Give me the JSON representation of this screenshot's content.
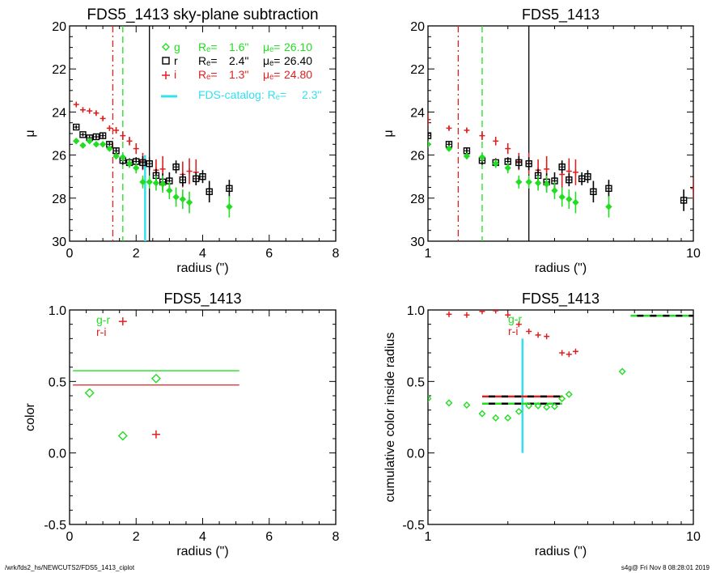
{
  "colors": {
    "g": "#22dd22",
    "r": "#000000",
    "i": "#e02020",
    "catalog": "#33e0ee"
  },
  "footer": {
    "left": "/wrk/fds2_hs/NEWCUTS2/FDS5_1413_ciplot",
    "right": "s4g@  Fri Nov  8 08:28:01 2019"
  },
  "chart_data": [
    {
      "type": "scatter",
      "id": "p1",
      "title": "FDS5_1413 sky-plane subtraction",
      "xlabel": "radius (\")",
      "ylabel": "μ",
      "xscale": "linear",
      "xlim": [
        0,
        8
      ],
      "ylim": [
        30,
        20
      ],
      "xticks": [
        0,
        2,
        4,
        6,
        8
      ],
      "yticks": [
        20,
        22,
        24,
        26,
        28,
        30
      ],
      "legend": {
        "placement": "top-right",
        "entries": [
          {
            "band": "g",
            "symbol": "diamond",
            "label": "g",
            "re_label": "Rₑ=",
            "re": "1.6\"",
            "mu_label": "μₑ=",
            "mu": "26.10"
          },
          {
            "band": "r",
            "symbol": "square",
            "label": "r",
            "re_label": "Rₑ=",
            "re": "2.4\"",
            "mu_label": "μₑ=",
            "mu": "26.40"
          },
          {
            "band": "i",
            "symbol": "plus",
            "label": "i",
            "re_label": "Rₑ=",
            "re": "1.3\"",
            "mu_label": "μₑ=",
            "mu": "24.80"
          },
          {
            "band": "catalog",
            "symbol": "line",
            "label": "FDS-catalog: Rₑ=",
            "re": "2.3\""
          }
        ]
      },
      "vlines": [
        {
          "band": "i",
          "x": 1.3,
          "style": "dashdot"
        },
        {
          "band": "g",
          "x": 1.6,
          "style": "dashed"
        },
        {
          "band": "r",
          "x": 2.4,
          "style": "solid"
        },
        {
          "band": "catalog",
          "x": 2.27,
          "style": "solid",
          "ymin": 26.0,
          "ymax": 30
        }
      ],
      "series": [
        {
          "name": "i",
          "symbol": "plus",
          "points": [
            [
              0.2,
              23.65,
              0.08
            ],
            [
              0.4,
              23.9,
              0.08
            ],
            [
              0.6,
              23.95,
              0.08
            ],
            [
              0.8,
              24.05,
              0.1
            ],
            [
              1.0,
              24.3,
              0.1
            ],
            [
              1.2,
              24.75,
              0.12
            ],
            [
              1.4,
              24.85,
              0.15
            ],
            [
              1.6,
              25.1,
              0.2
            ],
            [
              1.8,
              25.35,
              0.2
            ],
            [
              2.0,
              25.7,
              0.25
            ],
            [
              2.2,
              26.3,
              0.4
            ],
            [
              2.6,
              26.7,
              0.5
            ],
            [
              2.8,
              26.65,
              0.6
            ],
            [
              3.4,
              26.9,
              0.6
            ],
            [
              3.6,
              26.75,
              0.6
            ],
            [
              3.8,
              26.8,
              0.6
            ]
          ]
        },
        {
          "name": "r",
          "symbol": "square",
          "points": [
            [
              0.2,
              24.7,
              0.08
            ],
            [
              0.4,
              25.05,
              0.08
            ],
            [
              0.6,
              25.2,
              0.1
            ],
            [
              0.8,
              25.15,
              0.1
            ],
            [
              1.0,
              25.1,
              0.1
            ],
            [
              1.2,
              25.5,
              0.1
            ],
            [
              1.4,
              25.8,
              0.15
            ],
            [
              1.6,
              26.25,
              0.2
            ],
            [
              1.8,
              26.35,
              0.2
            ],
            [
              2.0,
              26.3,
              0.2
            ],
            [
              2.2,
              26.35,
              0.3
            ],
            [
              2.4,
              26.4,
              0.3
            ],
            [
              2.6,
              26.95,
              0.3
            ],
            [
              2.8,
              27.25,
              0.4
            ],
            [
              3.0,
              27.2,
              0.4
            ],
            [
              3.2,
              26.55,
              0.3
            ],
            [
              3.4,
              27.15,
              0.3
            ],
            [
              3.8,
              27.1,
              0.3
            ],
            [
              4.0,
              27.0,
              0.3
            ],
            [
              4.2,
              27.7,
              0.5
            ],
            [
              4.8,
              27.55,
              0.4
            ]
          ]
        },
        {
          "name": "g",
          "symbol": "diamond",
          "points": [
            [
              0.2,
              25.35,
              0.08
            ],
            [
              0.4,
              25.55,
              0.08
            ],
            [
              0.6,
              25.35,
              0.08
            ],
            [
              0.8,
              25.5,
              0.08
            ],
            [
              1.0,
              25.5,
              0.1
            ],
            [
              1.2,
              25.7,
              0.1
            ],
            [
              1.4,
              26.05,
              0.15
            ],
            [
              1.6,
              26.1,
              0.2
            ],
            [
              1.8,
              26.4,
              0.2
            ],
            [
              2.0,
              26.6,
              0.25
            ],
            [
              2.2,
              27.25,
              0.3
            ],
            [
              2.4,
              27.25,
              0.3
            ],
            [
              2.6,
              27.3,
              0.35
            ],
            [
              2.8,
              27.35,
              0.4
            ],
            [
              3.0,
              27.65,
              0.4
            ],
            [
              3.2,
              27.95,
              0.45
            ],
            [
              3.4,
              28.05,
              0.45
            ],
            [
              3.6,
              28.2,
              0.5
            ],
            [
              4.8,
              28.4,
              0.5
            ]
          ]
        }
      ]
    },
    {
      "type": "scatter",
      "id": "p2",
      "title": "FDS5_1413",
      "xlabel": "radius (\")",
      "ylabel": "μ",
      "xscale": "log",
      "xlim": [
        1,
        10
      ],
      "ylim": [
        30,
        20
      ],
      "xticks": [
        1,
        10
      ],
      "yticks": [
        20,
        22,
        24,
        26,
        28,
        30
      ],
      "vlines": [
        {
          "band": "i",
          "x": 1.3,
          "style": "dashdot"
        },
        {
          "band": "g",
          "x": 1.6,
          "style": "dashed"
        },
        {
          "band": "r",
          "x": 2.4,
          "style": "solid"
        }
      ],
      "series": [
        {
          "name": "i",
          "symbol": "plus",
          "points": [
            [
              1.0,
              24.35,
              0.3
            ],
            [
              1.2,
              24.75,
              0.1
            ],
            [
              1.4,
              24.85,
              0.1
            ],
            [
              1.6,
              25.1,
              0.2
            ],
            [
              1.8,
              25.35,
              0.2
            ],
            [
              2.0,
              25.7,
              0.25
            ],
            [
              2.2,
              26.3,
              0.4
            ],
            [
              2.4,
              26.4,
              0.5
            ],
            [
              2.6,
              26.7,
              0.5
            ],
            [
              2.8,
              26.65,
              0.6
            ],
            [
              3.2,
              26.9,
              0.6
            ],
            [
              3.4,
              26.75,
              0.6
            ],
            [
              3.6,
              26.8,
              0.6
            ],
            [
              10.0,
              27.55,
              0.5
            ]
          ]
        },
        {
          "name": "r",
          "symbol": "square",
          "points": [
            [
              1.0,
              25.1,
              0.1
            ],
            [
              1.2,
              25.5,
              0.1
            ],
            [
              1.4,
              25.8,
              0.15
            ],
            [
              1.6,
              26.25,
              0.2
            ],
            [
              1.8,
              26.35,
              0.2
            ],
            [
              2.0,
              26.3,
              0.2
            ],
            [
              2.2,
              26.35,
              0.3
            ],
            [
              2.4,
              26.4,
              0.3
            ],
            [
              2.6,
              26.95,
              0.3
            ],
            [
              2.8,
              27.25,
              0.4
            ],
            [
              3.0,
              27.2,
              0.4
            ],
            [
              3.2,
              26.55,
              0.3
            ],
            [
              3.4,
              27.15,
              0.3
            ],
            [
              3.8,
              27.1,
              0.3
            ],
            [
              4.0,
              27.0,
              0.3
            ],
            [
              4.2,
              27.7,
              0.5
            ],
            [
              4.8,
              27.55,
              0.4
            ],
            [
              9.2,
              28.1,
              0.5
            ]
          ]
        },
        {
          "name": "g",
          "symbol": "diamond",
          "points": [
            [
              1.0,
              25.5,
              0.1
            ],
            [
              1.2,
              25.7,
              0.1
            ],
            [
              1.4,
              26.05,
              0.15
            ],
            [
              1.6,
              26.1,
              0.2
            ],
            [
              1.8,
              26.4,
              0.2
            ],
            [
              2.0,
              26.6,
              0.25
            ],
            [
              2.2,
              27.25,
              0.3
            ],
            [
              2.4,
              27.25,
              0.3
            ],
            [
              2.6,
              27.3,
              0.35
            ],
            [
              2.8,
              27.35,
              0.4
            ],
            [
              3.0,
              27.65,
              0.4
            ],
            [
              3.2,
              27.95,
              0.45
            ],
            [
              3.4,
              28.05,
              0.45
            ],
            [
              3.6,
              28.2,
              0.5
            ],
            [
              4.8,
              28.4,
              0.5
            ]
          ]
        }
      ]
    },
    {
      "type": "scatter",
      "id": "p3",
      "title": "FDS5_1413",
      "xlabel": "radius (\")",
      "ylabel": "color",
      "xscale": "linear",
      "xlim": [
        0,
        8
      ],
      "ylim": [
        -0.5,
        1.0
      ],
      "xticks": [
        0,
        2,
        4,
        6,
        8
      ],
      "yticks": [
        -0.5,
        0.0,
        0.5,
        1.0
      ],
      "ytick_labels": [
        "-0.5",
        "0.0",
        "0.5",
        "1.0"
      ],
      "legend": {
        "placement": "top-left",
        "entries": [
          {
            "band": "g",
            "label": "g-r"
          },
          {
            "band": "i",
            "label": "r-i"
          }
        ]
      },
      "hlines": [
        {
          "band": "g",
          "y": 0.575,
          "x0": 0.1,
          "x1": 5.1
        },
        {
          "band": "i",
          "y": 0.475,
          "x0": 0.1,
          "x1": 5.1
        }
      ],
      "series": [
        {
          "name": "g-r",
          "band": "g",
          "symbol": "diamond",
          "points": [
            [
              0.6,
              0.42
            ],
            [
              1.6,
              0.12
            ],
            [
              2.6,
              0.52
            ]
          ]
        },
        {
          "name": "r-i",
          "band": "i",
          "symbol": "plus",
          "points": [
            [
              1.6,
              0.92
            ],
            [
              2.6,
              0.13
            ]
          ]
        }
      ]
    },
    {
      "type": "scatter",
      "id": "p4",
      "title": "FDS5_1413",
      "xlabel": "radius (\")",
      "ylabel": "cumulative color inside radius",
      "xscale": "log",
      "xlim": [
        1,
        10
      ],
      "ylim": [
        -0.5,
        1.0
      ],
      "xticks": [
        1,
        10
      ],
      "yticks": [
        -0.5,
        0.0,
        0.5,
        1.0
      ],
      "ytick_labels": [
        "-0.5",
        "0.0",
        "0.5",
        "1.0"
      ],
      "legend": {
        "placement": "top-center",
        "entries": [
          {
            "band": "g",
            "label": "g-r"
          },
          {
            "band": "i",
            "label": "r-i"
          }
        ]
      },
      "vlines": [
        {
          "band": "catalog",
          "x": 2.27,
          "ymin": 0.0,
          "ymax": 0.8
        }
      ],
      "hlines": [
        {
          "band": "i",
          "y": 0.395,
          "x0": 1.6,
          "x1": 3.2,
          "dashed_black": true
        },
        {
          "band": "g",
          "y": 0.345,
          "x0": 1.6,
          "x1": 3.2,
          "dashed_black": true
        },
        {
          "band": "g",
          "y": 0.96,
          "x0": 5.8,
          "x1": 10,
          "dashed_black": true
        }
      ],
      "series": [
        {
          "name": "r-i",
          "band": "i",
          "symbol": "plus",
          "points": [
            [
              1.2,
              0.97
            ],
            [
              1.4,
              0.965
            ],
            [
              1.6,
              0.99
            ],
            [
              1.8,
              0.995
            ],
            [
              2.0,
              0.965
            ],
            [
              2.2,
              0.9
            ],
            [
              2.4,
              0.85
            ],
            [
              2.6,
              0.825
            ],
            [
              2.8,
              0.815
            ],
            [
              3.2,
              0.7
            ],
            [
              3.4,
              0.69
            ],
            [
              3.6,
              0.71
            ]
          ]
        },
        {
          "name": "g-r",
          "band": "g",
          "symbol": "diamond",
          "points": [
            [
              1.0,
              0.38
            ],
            [
              1.2,
              0.35
            ],
            [
              1.4,
              0.335
            ],
            [
              1.6,
              0.275
            ],
            [
              1.8,
              0.245
            ],
            [
              2.0,
              0.245
            ],
            [
              2.2,
              0.29
            ],
            [
              2.4,
              0.33
            ],
            [
              2.6,
              0.33
            ],
            [
              2.8,
              0.32
            ],
            [
              3.0,
              0.325
            ],
            [
              3.2,
              0.38
            ],
            [
              3.4,
              0.41
            ],
            [
              5.4,
              0.57
            ]
          ]
        }
      ]
    }
  ]
}
